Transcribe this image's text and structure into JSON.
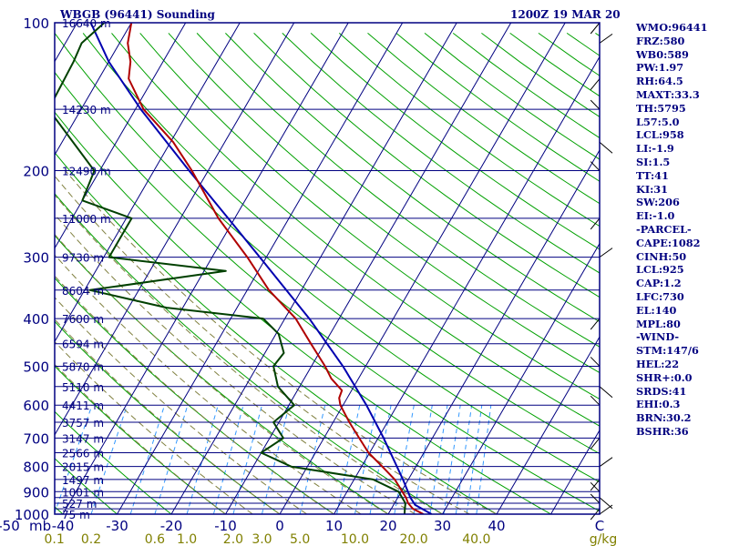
{
  "header": {
    "station": "WBGB (96441) Sounding",
    "time": "1200Z 19 MAR 20"
  },
  "indices": [
    "WMO:96441",
    "FRZ:580",
    "WB0:589",
    "PW:1.97",
    "RH:64.5",
    "MAXT:33.3",
    "TH:5795",
    "L57:5.0",
    "LCL:958",
    "LI:-1.9",
    "SI:1.5",
    "TT:41",
    "KI:31",
    "SW:206",
    "EI:-1.0",
    "-PARCEL-",
    "CAPE:1082",
    "CINH:50",
    "LCL:925",
    "CAP:1.2",
    "LFC:730",
    "EL:140",
    "MPL:80",
    "-WIND-",
    "STM:147/6",
    "HEL:22",
    "SHR+:0.0",
    "SRDS:41",
    "EHI:0.3",
    "BRN:30.2",
    "BSHR:36"
  ],
  "colors": {
    "frame": "#000080",
    "isobar": "#000080",
    "isotherm": "#000080",
    "dry_adiabat": "#00a000",
    "moist_adiabat": "#808040",
    "mixing_ratio": "#3399ff",
    "temperature": "#b00000",
    "dewpoint": "#004000",
    "parcel": "#0000b0",
    "wind": "#000000",
    "mixing_label": "#808000"
  },
  "chart_data": {
    "type": "skew-t",
    "title": "WBGB (96441) Sounding",
    "pressure_levels": [
      100,
      200,
      300,
      400,
      500,
      600,
      700,
      800,
      900,
      1000
    ],
    "pressure_tick_labels": [
      "100",
      "200",
      "300",
      "400",
      "500",
      "600",
      "700",
      "800",
      "900",
      "1000"
    ],
    "height_levels": [
      {
        "p": 100,
        "label": "16640 m"
      },
      {
        "p": 150,
        "label": "14230 m"
      },
      {
        "p": 200,
        "label": "12490 m"
      },
      {
        "p": 250,
        "label": "11000 m"
      },
      {
        "p": 300,
        "label": "9730 m"
      },
      {
        "p": 350,
        "label": "8604 m"
      },
      {
        "p": 400,
        "label": "7600 m"
      },
      {
        "p": 450,
        "label": "6594 m"
      },
      {
        "p": 500,
        "label": "5870 m"
      },
      {
        "p": 550,
        "label": "5110 m"
      },
      {
        "p": 600,
        "label": "4411 m"
      },
      {
        "p": 650,
        "label": "3757 m"
      },
      {
        "p": 700,
        "label": "3147 m"
      },
      {
        "p": 750,
        "label": "2566 m"
      },
      {
        "p": 800,
        "label": "2015 m"
      },
      {
        "p": 850,
        "label": "1497 m"
      },
      {
        "p": 900,
        "label": "1001 m"
      },
      {
        "p": 950,
        "label": "527 m"
      },
      {
        "p": 1000,
        "label": "75 m"
      }
    ],
    "pressure_unit_label": "mb",
    "temperature_ticks": [
      "-50",
      "-40",
      "-30",
      "-20",
      "-10",
      "0",
      "10",
      "20",
      "30",
      "40",
      "C"
    ],
    "temperature_tick_values": [
      -50,
      -40,
      -30,
      -20,
      -10,
      0,
      10,
      20,
      30,
      40
    ],
    "mixing_ratio_ticks": [
      "0.1",
      "0.2",
      "0.6",
      "1.0",
      "2.0",
      "3.0",
      "5.0",
      "10.0",
      "20.0",
      "40.0"
    ],
    "mixing_ratio_values": [
      0.1,
      0.2,
      0.6,
      1.0,
      2.0,
      3.0,
      5.0,
      10.0,
      20.0,
      40.0
    ],
    "mixing_ratio_unit": "g/kg",
    "temperature_profile": [
      {
        "p": 1000,
        "t": 26.5
      },
      {
        "p": 975,
        "t": 24.0
      },
      {
        "p": 950,
        "t": 22.5
      },
      {
        "p": 925,
        "t": 21.5
      },
      {
        "p": 900,
        "t": 20.2
      },
      {
        "p": 850,
        "t": 17.5
      },
      {
        "p": 800,
        "t": 13.8
      },
      {
        "p": 750,
        "t": 9.8
      },
      {
        "p": 700,
        "t": 6.5
      },
      {
        "p": 650,
        "t": 3.0
      },
      {
        "p": 600,
        "t": -0.5
      },
      {
        "p": 580,
        "t": -1.5
      },
      {
        "p": 560,
        "t": -1.8
      },
      {
        "p": 530,
        "t": -5.0
      },
      {
        "p": 500,
        "t": -7.5
      },
      {
        "p": 450,
        "t": -12.5
      },
      {
        "p": 400,
        "t": -18.0
      },
      {
        "p": 350,
        "t": -26.0
      },
      {
        "p": 300,
        "t": -33.5
      },
      {
        "p": 250,
        "t": -43.0
      },
      {
        "p": 200,
        "t": -53.0
      },
      {
        "p": 175,
        "t": -59.5
      },
      {
        "p": 150,
        "t": -68.5
      },
      {
        "p": 130,
        "t": -74.5
      },
      {
        "p": 120,
        "t": -76.0
      },
      {
        "p": 110,
        "t": -78.5
      },
      {
        "p": 100,
        "t": -80.0
      }
    ],
    "dewpoint_profile": [
      {
        "p": 1000,
        "t": 23.0
      },
      {
        "p": 975,
        "t": 22.5
      },
      {
        "p": 950,
        "t": 22.0
      },
      {
        "p": 900,
        "t": 19.5
      },
      {
        "p": 850,
        "t": 13.5
      },
      {
        "p": 800,
        "t": -3.0
      },
      {
        "p": 750,
        "t": -10.0
      },
      {
        "p": 700,
        "t": -7.5
      },
      {
        "p": 650,
        "t": -11.0
      },
      {
        "p": 600,
        "t": -9.0
      },
      {
        "p": 550,
        "t": -14.0
      },
      {
        "p": 500,
        "t": -17.0
      },
      {
        "p": 470,
        "t": -16.5
      },
      {
        "p": 430,
        "t": -19.5
      },
      {
        "p": 400,
        "t": -24.0
      },
      {
        "p": 380,
        "t": -43.0
      },
      {
        "p": 350,
        "t": -59.0
      },
      {
        "p": 320,
        "t": -36.0
      },
      {
        "p": 300,
        "t": -59.0
      },
      {
        "p": 250,
        "t": -59.0
      },
      {
        "p": 230,
        "t": -70.0
      },
      {
        "p": 200,
        "t": -71.0
      },
      {
        "p": 150,
        "t": -86.0
      },
      {
        "p": 120,
        "t": -86.5
      },
      {
        "p": 110,
        "t": -87.0
      },
      {
        "p": 100,
        "t": -85.0
      }
    ],
    "parcel_profile": [
      {
        "p": 1000,
        "t": 28.0
      },
      {
        "p": 958,
        "t": 24.0
      },
      {
        "p": 925,
        "t": 22.3
      },
      {
        "p": 850,
        "t": 19.0
      },
      {
        "p": 700,
        "t": 11.0
      },
      {
        "p": 600,
        "t": 4.3
      },
      {
        "p": 500,
        "t": -4.2
      },
      {
        "p": 400,
        "t": -15.5
      },
      {
        "p": 300,
        "t": -31.2
      },
      {
        "p": 250,
        "t": -41.2
      },
      {
        "p": 200,
        "t": -53.5
      },
      {
        "p": 150,
        "t": -69.0
      },
      {
        "p": 120,
        "t": -80.0
      },
      {
        "p": 100,
        "t": -87.5
      }
    ],
    "wind_barb_pressures": [
      1000,
      975,
      950,
      925,
      900,
      850,
      800,
      700,
      600,
      550,
      500,
      400,
      300,
      250,
      200,
      175,
      150,
      130,
      110,
      100
    ]
  }
}
